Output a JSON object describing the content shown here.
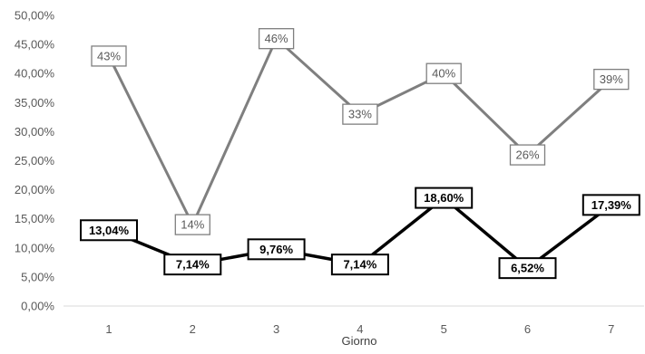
{
  "chart_data": {
    "type": "line",
    "title": "",
    "xlabel": "Giorno",
    "ylabel": "",
    "x": [
      1,
      2,
      3,
      4,
      5,
      6,
      7
    ],
    "ylim": [
      0,
      50
    ],
    "yticks": [
      0,
      5,
      10,
      15,
      20,
      25,
      30,
      35,
      40,
      45,
      50
    ],
    "ytick_labels": [
      "0,00%",
      "5,00%",
      "10,00%",
      "15,00%",
      "20,00%",
      "25,00%",
      "30,00%",
      "35,00%",
      "40,00%",
      "45,00%",
      "50,00%"
    ],
    "xtick_labels": [
      "1",
      "2",
      "3",
      "4",
      "5",
      "6",
      "7"
    ],
    "grid": false,
    "series": [
      {
        "color": "#7f7f7f",
        "values": [
          43,
          14,
          46,
          33,
          40,
          26,
          39
        ],
        "labels": [
          "43%",
          "14%",
          "46%",
          "33%",
          "40%",
          "26%",
          "39%"
        ]
      },
      {
        "color": "#000000",
        "values": [
          13.04,
          7.14,
          9.76,
          7.14,
          18.6,
          6.52,
          17.39
        ],
        "labels": [
          "13,04%",
          "7,14%",
          "9,76%",
          "7,14%",
          "18,60%",
          "6,52%",
          "17,39%"
        ]
      }
    ]
  }
}
